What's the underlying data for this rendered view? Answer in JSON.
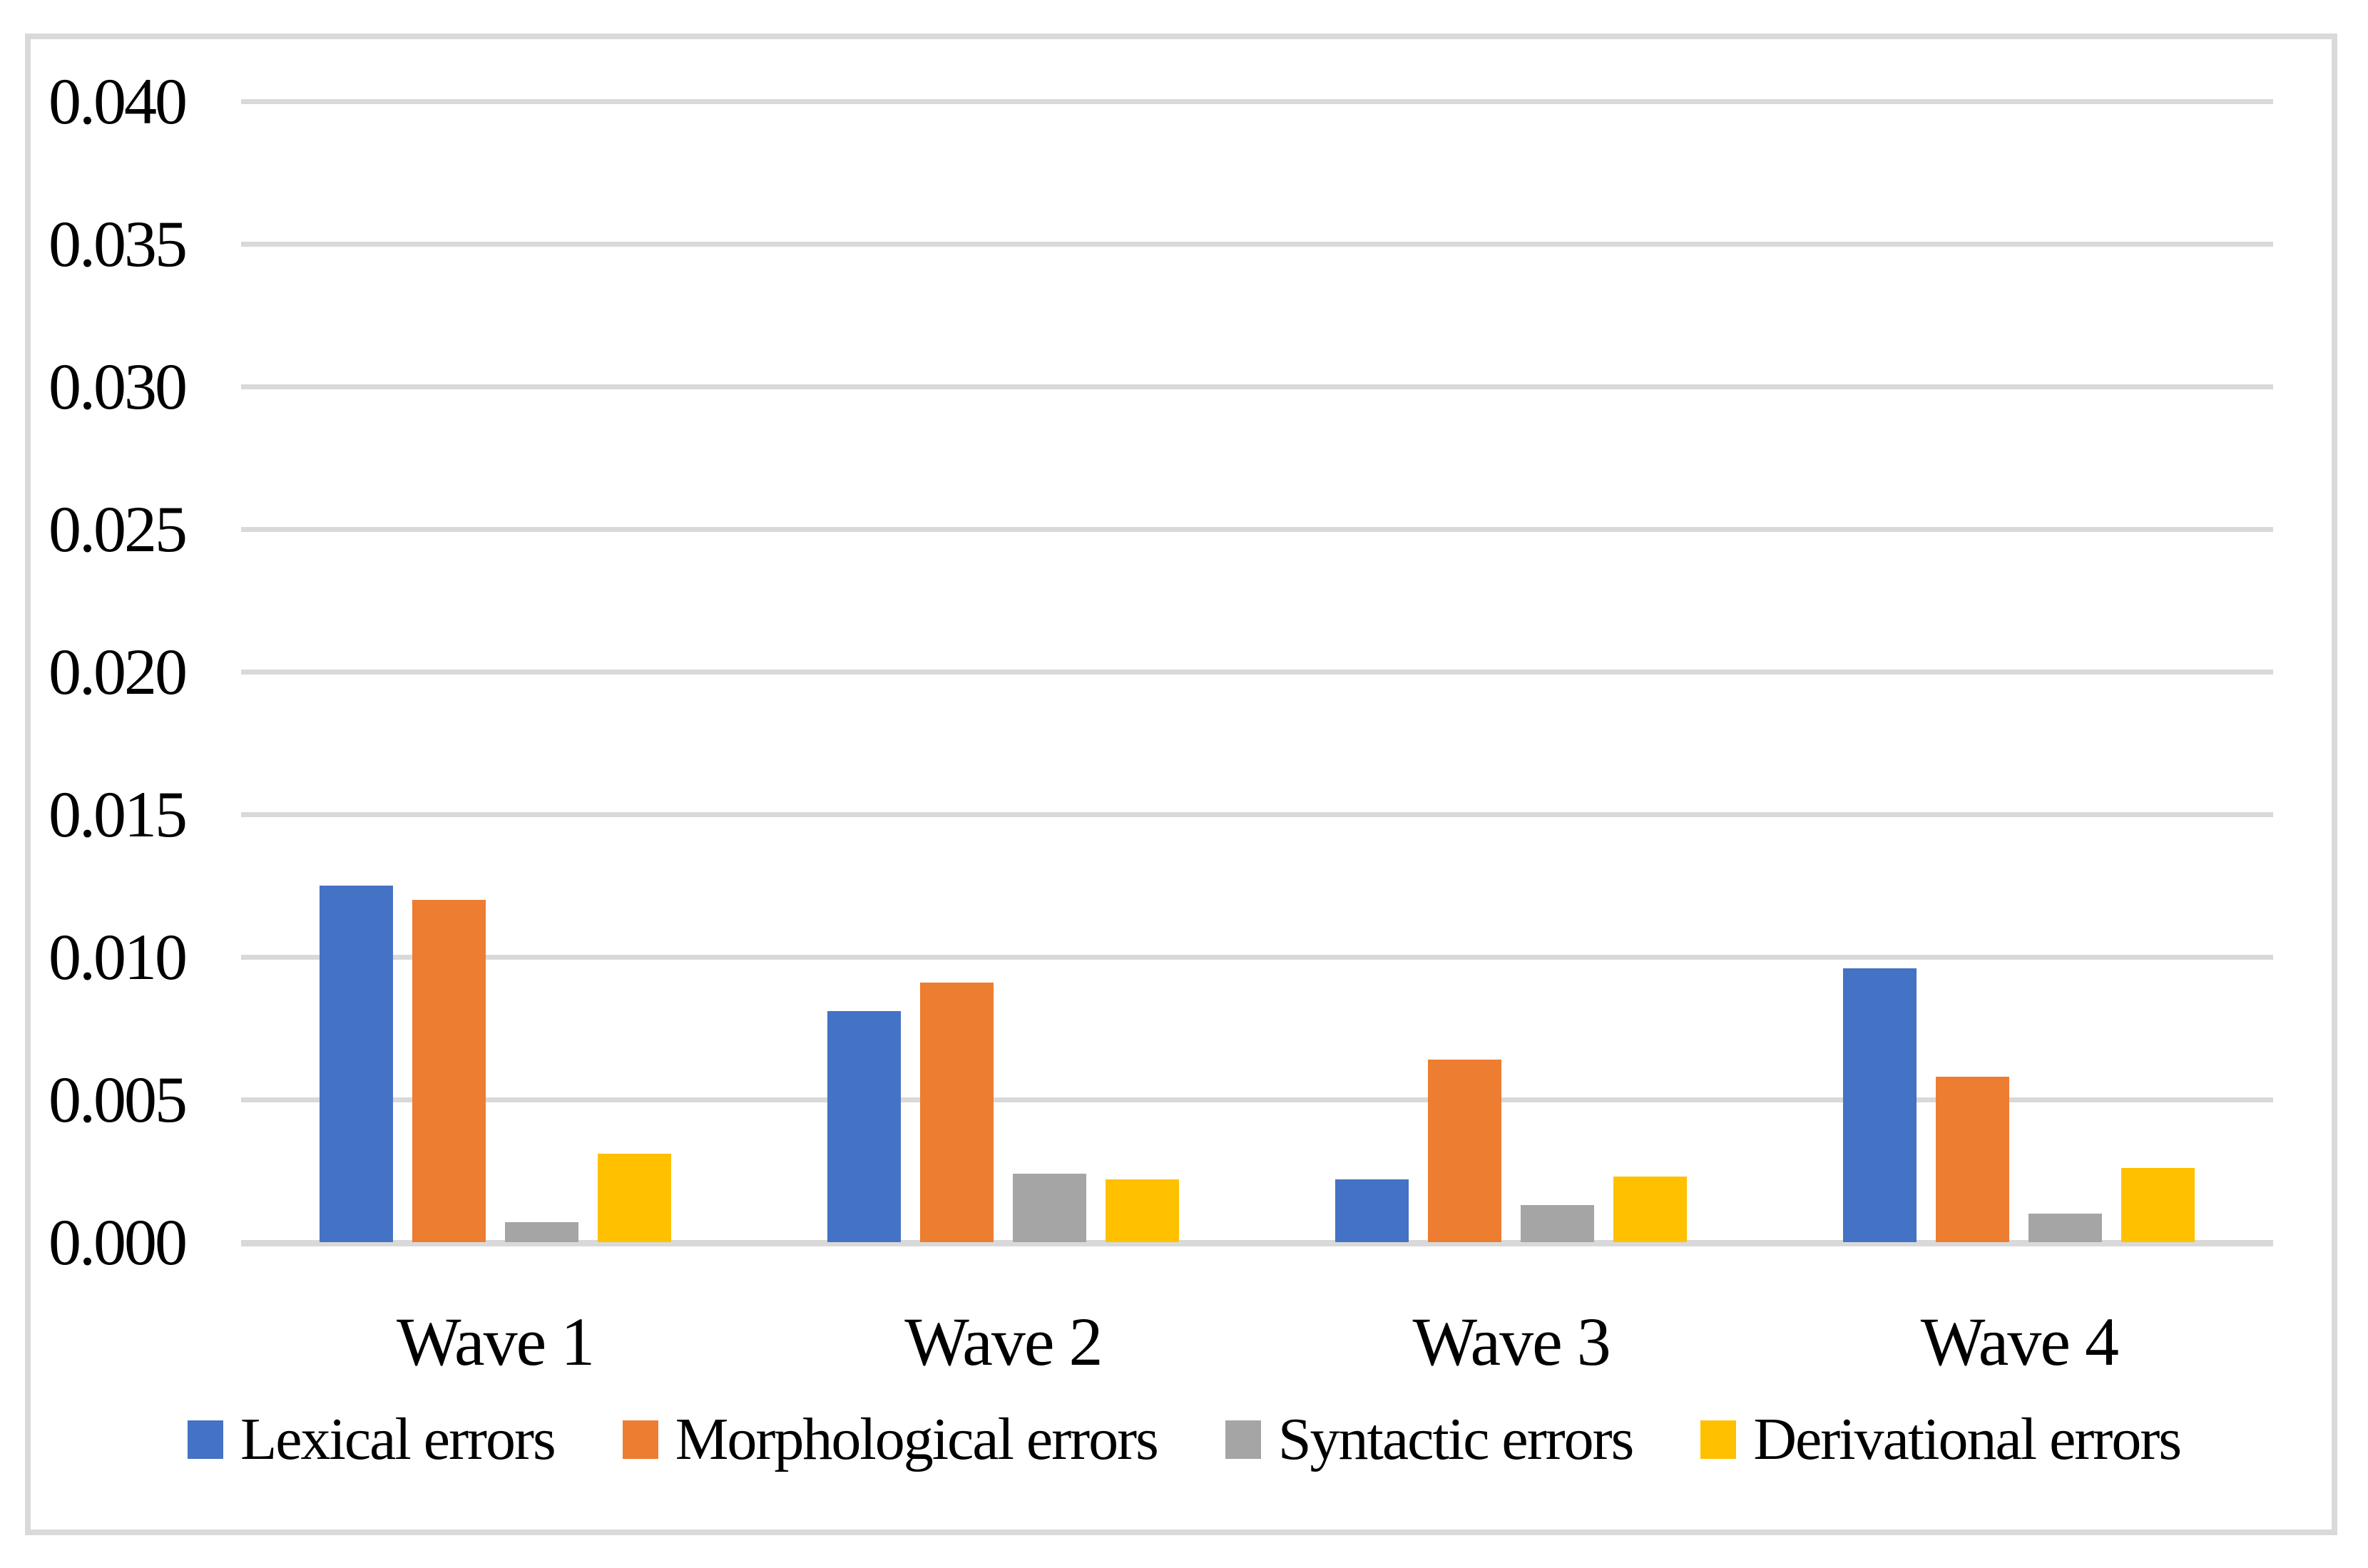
{
  "chart_data": {
    "type": "bar",
    "title": "",
    "xlabel": "",
    "ylabel": "",
    "categories": [
      "Wave 1",
      "Wave 2",
      "Wave 3",
      "Wave 4"
    ],
    "series": [
      {
        "name": "Lexical errors",
        "color": "#4472C4",
        "values": [
          0.0125,
          0.0081,
          0.0022,
          0.0096
        ]
      },
      {
        "name": "Morphological errors",
        "color": "#ED7D31",
        "values": [
          0.012,
          0.0091,
          0.0064,
          0.0058
        ]
      },
      {
        "name": "Syntactic errors",
        "color": "#A5A5A5",
        "values": [
          0.0007,
          0.0024,
          0.0013,
          0.001
        ]
      },
      {
        "name": "Derivational errors",
        "color": "#FFC000",
        "values": [
          0.0031,
          0.0022,
          0.0023,
          0.0026
        ]
      }
    ],
    "y_axis": {
      "min": 0,
      "max": 0.04,
      "step": 0.005,
      "tick_labels": [
        "0.040",
        "0.035",
        "0.030",
        "0.025",
        "0.020",
        "0.015",
        "0.010",
        "0.005",
        "0.000"
      ]
    },
    "grid": true,
    "legend_position": "bottom",
    "colors": {
      "gridline": "#D9D9D9",
      "frame_border": "#D9D9D9",
      "text": "#000000",
      "background": "#FFFFFF"
    }
  }
}
